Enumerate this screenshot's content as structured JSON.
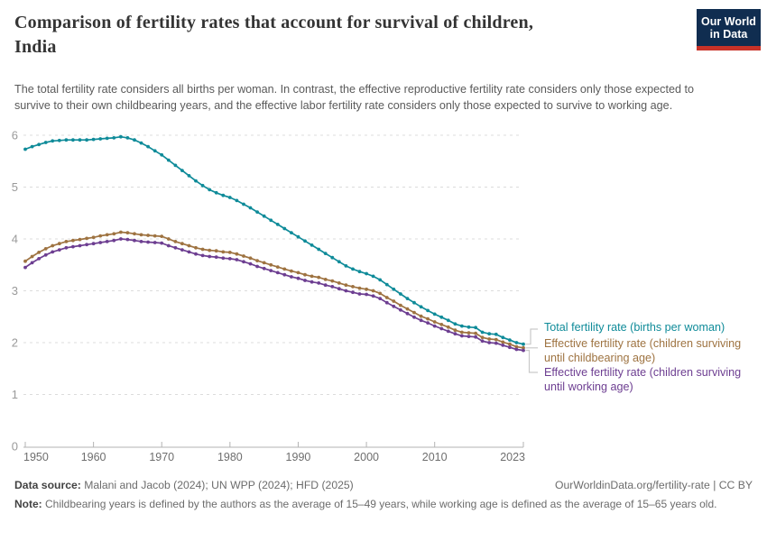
{
  "header": {
    "title_line1": "Comparison of fertility rates that account for survival of children,",
    "title_line2": "India",
    "subtitle": "The total fertility rate considers all births per woman. In contrast, the effective reproductive fertility rate considers only those expected to survive to their own childbearing years, and the effective labor fertility rate considers only those expected to survive to working age.",
    "logo_line1": "Our World",
    "logo_line2": "in Data",
    "logo_bg": "#102D50",
    "logo_accent": "#C83228"
  },
  "chart_data": {
    "type": "line",
    "title": "Comparison of fertility rates that account for survival of children, India",
    "xlabel": "",
    "ylabel": "",
    "ylim": [
      0,
      6.2
    ],
    "grid": "horizontal dashed",
    "legend_position": "right of line ends, bracket connectors",
    "markers": "small circles on every yearly point",
    "xticks": [
      1950,
      1960,
      1970,
      1980,
      1990,
      2000,
      2010,
      2023
    ],
    "yticks": [
      0,
      1,
      2,
      3,
      4,
      5,
      6
    ],
    "x": [
      1950,
      1951,
      1952,
      1953,
      1954,
      1955,
      1956,
      1957,
      1958,
      1959,
      1960,
      1961,
      1962,
      1963,
      1964,
      1965,
      1966,
      1967,
      1968,
      1969,
      1970,
      1971,
      1972,
      1973,
      1974,
      1975,
      1976,
      1977,
      1978,
      1979,
      1980,
      1981,
      1982,
      1983,
      1984,
      1985,
      1986,
      1987,
      1988,
      1989,
      1990,
      1991,
      1992,
      1993,
      1994,
      1995,
      1996,
      1997,
      1998,
      1999,
      2000,
      2001,
      2002,
      2003,
      2004,
      2005,
      2006,
      2007,
      2008,
      2009,
      2010,
      2011,
      2012,
      2013,
      2014,
      2015,
      2016,
      2017,
      2018,
      2019,
      2020,
      2021,
      2022,
      2023
    ],
    "series": [
      {
        "name": "Total fertility rate (births per woman)",
        "color": "#0F8B99",
        "values": [
          5.73,
          5.78,
          5.82,
          5.86,
          5.89,
          5.9,
          5.91,
          5.91,
          5.91,
          5.91,
          5.92,
          5.93,
          5.94,
          5.95,
          5.97,
          5.95,
          5.91,
          5.85,
          5.78,
          5.7,
          5.62,
          5.52,
          5.42,
          5.32,
          5.22,
          5.12,
          5.03,
          4.95,
          4.89,
          4.84,
          4.8,
          4.74,
          4.67,
          4.6,
          4.52,
          4.44,
          4.36,
          4.28,
          4.2,
          4.12,
          4.04,
          3.96,
          3.88,
          3.8,
          3.72,
          3.64,
          3.56,
          3.48,
          3.42,
          3.37,
          3.33,
          3.28,
          3.21,
          3.12,
          3.03,
          2.94,
          2.85,
          2.77,
          2.69,
          2.62,
          2.55,
          2.49,
          2.43,
          2.36,
          2.32,
          2.3,
          2.29,
          2.2,
          2.17,
          2.16,
          2.1,
          2.05,
          2.0,
          1.97
        ]
      },
      {
        "name": "Effective fertility rate (children surviving until childbearing age)",
        "color": "#9E7341",
        "values": [
          3.57,
          3.66,
          3.74,
          3.81,
          3.87,
          3.91,
          3.95,
          3.97,
          3.99,
          4.01,
          4.03,
          4.06,
          4.08,
          4.1,
          4.13,
          4.12,
          4.1,
          4.08,
          4.07,
          4.06,
          4.05,
          4.0,
          3.95,
          3.91,
          3.87,
          3.83,
          3.8,
          3.78,
          3.77,
          3.75,
          3.74,
          3.71,
          3.67,
          3.63,
          3.58,
          3.54,
          3.5,
          3.46,
          3.42,
          3.38,
          3.35,
          3.31,
          3.28,
          3.26,
          3.22,
          3.19,
          3.15,
          3.11,
          3.08,
          3.05,
          3.03,
          3.0,
          2.95,
          2.87,
          2.8,
          2.72,
          2.65,
          2.58,
          2.51,
          2.46,
          2.4,
          2.35,
          2.3,
          2.24,
          2.2,
          2.19,
          2.18,
          2.1,
          2.07,
          2.06,
          2.01,
          1.97,
          1.92,
          1.9
        ]
      },
      {
        "name": "Effective fertility rate (children surviving until working age)",
        "color": "#6D3E91",
        "values": [
          3.45,
          3.54,
          3.62,
          3.69,
          3.75,
          3.79,
          3.83,
          3.85,
          3.87,
          3.89,
          3.91,
          3.93,
          3.95,
          3.97,
          4.0,
          3.99,
          3.97,
          3.95,
          3.94,
          3.93,
          3.92,
          3.87,
          3.83,
          3.79,
          3.75,
          3.71,
          3.68,
          3.66,
          3.65,
          3.63,
          3.62,
          3.6,
          3.56,
          3.52,
          3.47,
          3.43,
          3.39,
          3.35,
          3.31,
          3.27,
          3.24,
          3.2,
          3.17,
          3.15,
          3.11,
          3.08,
          3.04,
          3.0,
          2.97,
          2.94,
          2.93,
          2.9,
          2.85,
          2.77,
          2.7,
          2.63,
          2.56,
          2.49,
          2.43,
          2.38,
          2.32,
          2.27,
          2.22,
          2.17,
          2.13,
          2.12,
          2.11,
          2.03,
          2.0,
          1.99,
          1.95,
          1.91,
          1.87,
          1.85
        ]
      }
    ]
  },
  "legend": [
    {
      "lines": [
        "Total fertility rate (births per woman)"
      ],
      "color": "#0F8B99"
    },
    {
      "lines": [
        "Effective fertility rate (children surviving",
        "until childbearing age)"
      ],
      "color": "#9E7341"
    },
    {
      "lines": [
        "Effective fertility rate (children surviving",
        "until working age)"
      ],
      "color": "#6D3E91"
    }
  ],
  "footer": {
    "source_label": "Data source:",
    "source_text": " Malani and Jacob (2024); UN WPP (2024); HFD (2025)",
    "rights": "OurWorldinData.org/fertility-rate | CC BY",
    "note_label": "Note:",
    "note_text": " Childbearing years is defined by the authors as the average of 15–49 years, while working age is defined as the average of 15–65 years old."
  }
}
